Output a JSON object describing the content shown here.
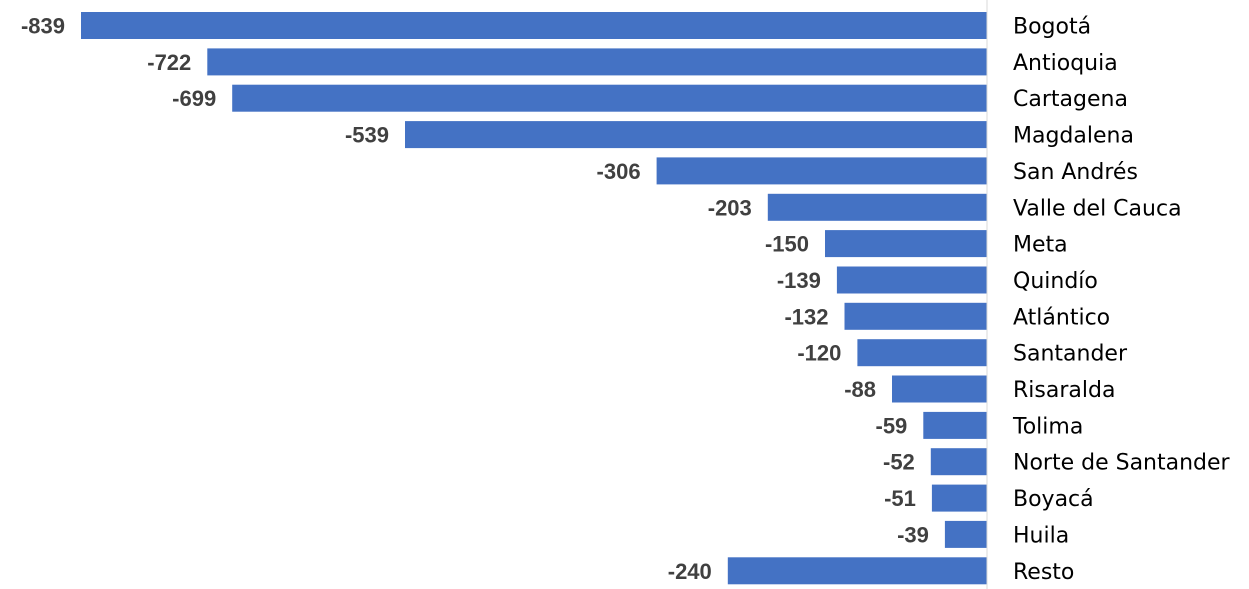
{
  "chart_data": {
    "type": "bar",
    "orientation": "horizontal",
    "categories": [
      "Bogotá",
      "Antioquia",
      "Cartagena",
      "Magdalena",
      "San Andrés",
      "Valle del Cauca",
      "Meta",
      "Quindío",
      "Atlántico",
      "Santander",
      "Risaralda",
      "Tolima",
      "Norte de Santander",
      "Boyacá",
      "Huila",
      "Resto"
    ],
    "values": [
      -839,
      -722,
      -699,
      -539,
      -306,
      -203,
      -150,
      -139,
      -132,
      -120,
      -88,
      -59,
      -52,
      -51,
      -39,
      -240
    ],
    "value_labels": [
      "-839",
      "-722",
      "-699",
      "-539",
      "-306",
      "-203",
      "-150",
      "-139",
      "-132",
      "-120",
      "-88",
      "-59",
      "-52",
      "-51",
      "-39",
      "-240"
    ],
    "title": "",
    "xlabel": "",
    "ylabel": "",
    "xlim": [
      -839,
      0
    ],
    "grid": false,
    "legend": "none",
    "bar_color": "#4472C4",
    "axis_color": "#D9D9D9"
  }
}
